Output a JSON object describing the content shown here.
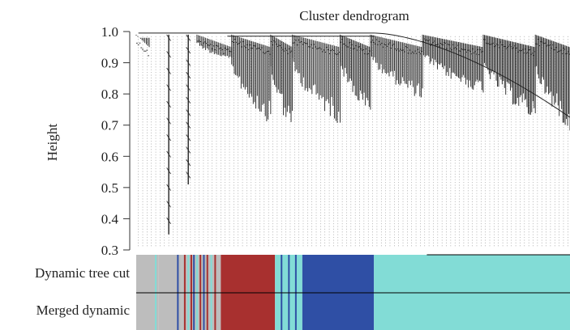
{
  "chart_data": {
    "type": "dendrogram",
    "title": "Cluster dendrogram",
    "ylabel": "Height",
    "ylim": [
      0.3,
      1.0
    ],
    "yticks": [
      1.0,
      0.9,
      0.8,
      0.7,
      0.6,
      0.5,
      0.4,
      0.3
    ],
    "ytick_labels": [
      "1.0",
      "0.9",
      "0.8",
      "0.7",
      "0.6",
      "0.5",
      "0.4",
      "0.3"
    ],
    "xlim": [
      0,
      100
    ],
    "subclusters": [
      {
        "x": [
          0,
          3
        ],
        "min_height": 0.98,
        "n": 10
      },
      {
        "x": [
          5,
          10
        ],
        "min_height": 0.35,
        "n": 8,
        "deep": true
      },
      {
        "x": [
          11,
          13
        ],
        "min_height": 0.51,
        "n": 6,
        "deep": true
      },
      {
        "x": [
          14,
          22
        ],
        "min_height": 0.91,
        "n": 25
      },
      {
        "x": [
          22,
          31
        ],
        "min_height": 0.7,
        "n": 30
      },
      {
        "x": [
          31,
          36
        ],
        "min_height": 0.67,
        "n": 18
      },
      {
        "x": [
          36,
          47
        ],
        "min_height": 0.7,
        "n": 35
      },
      {
        "x": [
          47,
          54
        ],
        "min_height": 0.72,
        "n": 25
      },
      {
        "x": [
          54,
          66
        ],
        "min_height": 0.78,
        "n": 40
      },
      {
        "x": [
          66,
          80
        ],
        "min_height": 0.8,
        "n": 50
      },
      {
        "x": [
          80,
          92
        ],
        "min_height": 0.71,
        "n": 45
      },
      {
        "x": [
          92,
          100
        ],
        "min_height": 0.68,
        "n": 30
      }
    ],
    "color_rows": [
      {
        "label": "Dynamic tree cut",
        "segments": [
          {
            "x": [
              0,
              5.1
            ],
            "color": "#bdbdbd"
          },
          {
            "x": [
              5.1,
              10.5
            ],
            "color": "#bdbdbd"
          },
          {
            "x": [
              10.5,
              19.5
            ],
            "color": "#bdbdbd"
          },
          {
            "x": [
              19.5,
              32.0
            ],
            "color": "#a8302f"
          },
          {
            "x": [
              32.0,
              38.3
            ],
            "color": "#82dcd6"
          },
          {
            "x": [
              38.3,
              54.8
            ],
            "color": "#2f4fa5"
          },
          {
            "x": [
              54.8,
              100
            ],
            "color": "#82dcd6"
          }
        ],
        "stripes": [
          {
            "x": 4.5,
            "color": "#82dcd6"
          },
          {
            "x": 9.6,
            "color": "#2f4fa5"
          },
          {
            "x": 11.2,
            "color": "#a8302f"
          },
          {
            "x": 12.0,
            "color": "#82dcd6"
          },
          {
            "x": 12.7,
            "color": "#a8302f"
          },
          {
            "x": 13.3,
            "color": "#2f4fa5"
          },
          {
            "x": 14.0,
            "color": "#82dcd6"
          },
          {
            "x": 14.8,
            "color": "#a8302f"
          },
          {
            "x": 15.6,
            "color": "#2f4fa5"
          },
          {
            "x": 16.4,
            "color": "#a8302f"
          },
          {
            "x": 17.3,
            "color": "#82dcd6"
          },
          {
            "x": 18.2,
            "color": "#a8302f"
          },
          {
            "x": 33.5,
            "color": "#2f4fa5"
          },
          {
            "x": 35.2,
            "color": "#2f4fa5"
          },
          {
            "x": 36.8,
            "color": "#2f4fa5"
          }
        ]
      },
      {
        "label": "Merged dynamic",
        "segments": [
          {
            "x": [
              0,
              5.1
            ],
            "color": "#bdbdbd"
          },
          {
            "x": [
              5.1,
              10.5
            ],
            "color": "#bdbdbd"
          },
          {
            "x": [
              10.5,
              19.5
            ],
            "color": "#bdbdbd"
          },
          {
            "x": [
              19.5,
              32.0
            ],
            "color": "#a8302f"
          },
          {
            "x": [
              32.0,
              38.3
            ],
            "color": "#82dcd6"
          },
          {
            "x": [
              38.3,
              54.8
            ],
            "color": "#2f4fa5"
          },
          {
            "x": [
              54.8,
              100
            ],
            "color": "#82dcd6"
          }
        ],
        "stripes": [
          {
            "x": 4.5,
            "color": "#82dcd6"
          },
          {
            "x": 9.6,
            "color": "#2f4fa5"
          },
          {
            "x": 11.2,
            "color": "#a8302f"
          },
          {
            "x": 12.0,
            "color": "#82dcd6"
          },
          {
            "x": 12.7,
            "color": "#a8302f"
          },
          {
            "x": 13.3,
            "color": "#2f4fa5"
          },
          {
            "x": 14.0,
            "color": "#82dcd6"
          },
          {
            "x": 14.8,
            "color": "#a8302f"
          },
          {
            "x": 15.6,
            "color": "#2f4fa5"
          },
          {
            "x": 16.4,
            "color": "#a8302f"
          },
          {
            "x": 17.3,
            "color": "#82dcd6"
          },
          {
            "x": 18.2,
            "color": "#a8302f"
          },
          {
            "x": 33.5,
            "color": "#2f4fa5"
          },
          {
            "x": 35.2,
            "color": "#2f4fa5"
          },
          {
            "x": 36.8,
            "color": "#2f4fa5"
          }
        ]
      }
    ]
  }
}
